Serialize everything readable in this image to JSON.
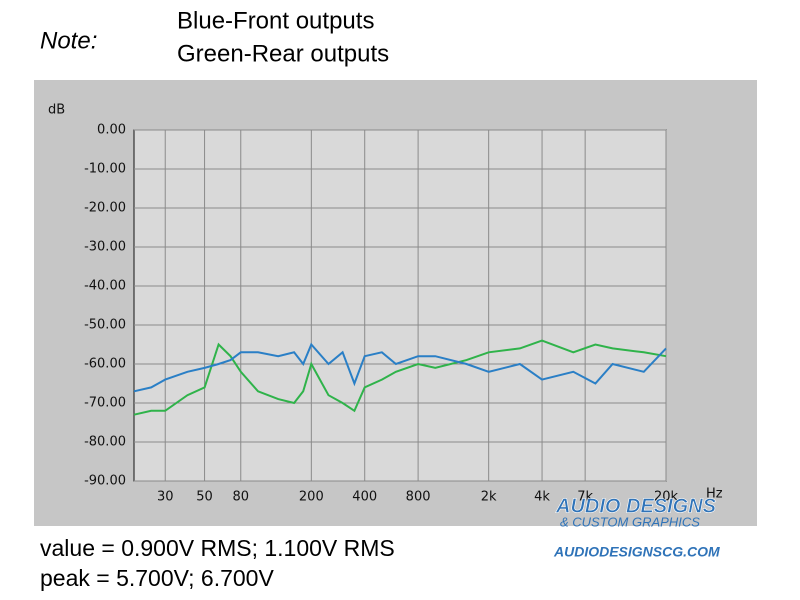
{
  "chart_data": {
    "type": "line",
    "y_label": "dB",
    "x_label": "Hz",
    "x_scale": "log",
    "x": [
      20,
      25,
      30,
      40,
      50,
      60,
      70,
      80,
      100,
      130,
      160,
      180,
      200,
      250,
      300,
      350,
      400,
      500,
      600,
      800,
      1000,
      1500,
      2000,
      3000,
      4000,
      6000,
      8000,
      10000,
      15000,
      20000
    ],
    "series": [
      {
        "name": "Blue-Front outputs",
        "color": "#2a7fc6",
        "values": [
          -67,
          -66,
          -64,
          -62,
          -61,
          -60,
          -59,
          -57,
          -57,
          -58,
          -57,
          -60,
          -55,
          -60,
          -57,
          -65,
          -58,
          -57,
          -60,
          -58,
          -58,
          -60,
          -62,
          -60,
          -64,
          -62,
          -65,
          -60,
          -62,
          -56
        ]
      },
      {
        "name": "Green-Rear outputs",
        "color": "#2fb34a",
        "values": [
          -73,
          -72,
          -72,
          -68,
          -66,
          -55,
          -58,
          -62,
          -67,
          -69,
          -70,
          -67,
          -60,
          -68,
          -70,
          -72,
          -66,
          -64,
          -62,
          -60,
          -61,
          -59,
          -57,
          -56,
          -54,
          -57,
          -55,
          -56,
          -57,
          -58
        ]
      }
    ],
    "xlim": [
      20,
      20000
    ],
    "xticks": [
      30,
      50,
      80,
      200,
      400,
      800,
      {
        "value": 2000,
        "label": "2k"
      },
      {
        "value": 4000,
        "label": "4k"
      },
      {
        "value": 7000,
        "label": "7k"
      },
      {
        "value": 20000,
        "label": "20k"
      }
    ],
    "ylim": [
      -90,
      0
    ],
    "yticks": [
      {
        "value": 0,
        "label": "0.00"
      },
      {
        "value": -10,
        "label": "-10.00"
      },
      {
        "value": -20,
        "label": "-20.00"
      },
      {
        "value": -30,
        "label": "-30.00"
      },
      {
        "value": -40,
        "label": "-40.00"
      },
      {
        "value": -50,
        "label": "-50.00"
      },
      {
        "value": -60,
        "label": "-60.00"
      },
      {
        "value": -70,
        "label": "-70.00"
      },
      {
        "value": -80,
        "label": "-80.00"
      },
      {
        "value": -90,
        "label": "-90.00"
      }
    ],
    "grid": true
  },
  "note": "Note:",
  "footer": [
    "value = 0.900V RMS; 1.100V RMS",
    "peak = 5.700V; 6.700V"
  ],
  "logo": {
    "name": "AUDIO DESIGNS",
    "tagline": "& CUSTOM GRAPHICS",
    "url": "AUDIODESIGNSCG.COM"
  }
}
